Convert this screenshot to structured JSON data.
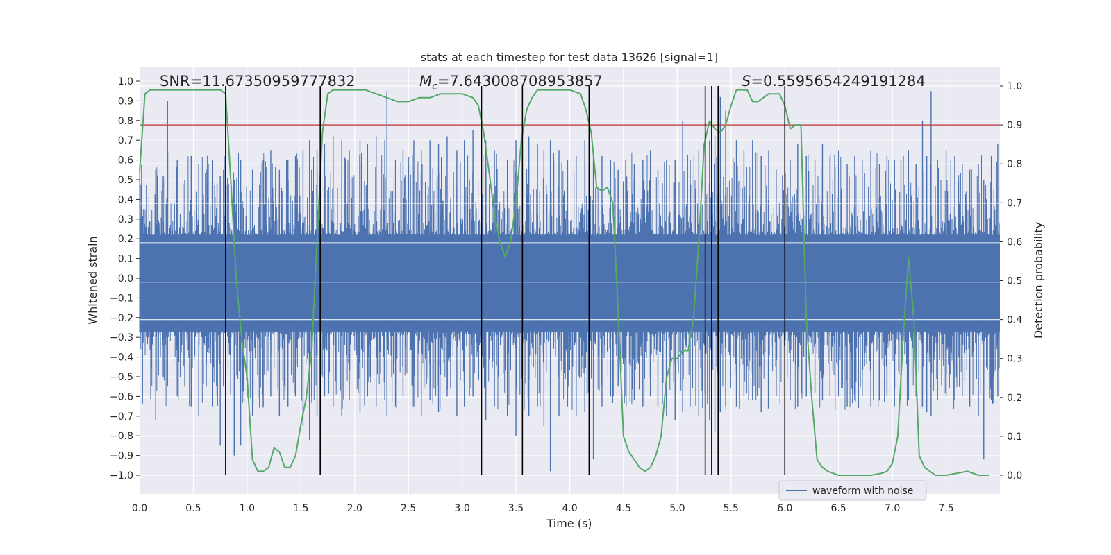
{
  "chart_data": {
    "type": "line",
    "title": "stats at each timestep for test data 13626 [signal=1]",
    "xlabel": "Time (s)",
    "ylabel_left": "Whitened strain",
    "ylabel_right": "Detection probability",
    "xlim": [
      0,
      8
    ],
    "ylim_left": [
      -1.0,
      1.0
    ],
    "ylim_right": [
      0.0,
      1.0
    ],
    "x_ticks": [
      "0.0",
      "0.5",
      "1.0",
      "1.5",
      "2.0",
      "2.5",
      "3.0",
      "3.5",
      "4.0",
      "4.5",
      "5.0",
      "5.5",
      "6.0",
      "6.5",
      "7.0",
      "7.5"
    ],
    "y_ticks_left": [
      "1.0",
      "0.9",
      "0.8",
      "0.7",
      "0.6",
      "0.5",
      "0.4",
      "0.3",
      "0.2",
      "0.1",
      "0.0",
      "-0.1",
      "-0.2",
      "-0.3",
      "-0.4",
      "-0.5",
      "-0.6",
      "-0.7",
      "-0.8",
      "-0.9",
      "-1.0"
    ],
    "y_ticks_right": [
      "1.0",
      "0.9",
      "0.8",
      "0.7",
      "0.6",
      "0.5",
      "0.4",
      "0.3",
      "0.2",
      "0.1",
      "0.0"
    ],
    "threshold": 0.9,
    "vertical_lines": [
      0.8,
      1.68,
      3.18,
      3.56,
      4.18,
      5.26,
      5.32,
      5.38,
      6.0
    ],
    "annotations": {
      "snr": "SNR=11.67350959777832",
      "mc_symbol": "M",
      "mc_sub": "c",
      "mc_value": "=7.643008708953857",
      "s_symbol": "S",
      "s_value": "=0.5595654249191284"
    },
    "legend": {
      "label": "waveform with noise",
      "location": "lower-right"
    },
    "probability_series": {
      "name": "Detection probability",
      "x": [
        0.0,
        0.05,
        0.1,
        0.2,
        0.3,
        0.4,
        0.5,
        0.6,
        0.7,
        0.75,
        0.8,
        0.85,
        0.9,
        0.95,
        1.0,
        1.05,
        1.1,
        1.15,
        1.2,
        1.25,
        1.3,
        1.35,
        1.4,
        1.45,
        1.5,
        1.55,
        1.6,
        1.65,
        1.7,
        1.75,
        1.8,
        1.9,
        2.0,
        2.1,
        2.2,
        2.3,
        2.4,
        2.5,
        2.6,
        2.7,
        2.8,
        2.9,
        3.0,
        3.1,
        3.15,
        3.2,
        3.25,
        3.3,
        3.35,
        3.4,
        3.45,
        3.5,
        3.55,
        3.6,
        3.65,
        3.7,
        3.75,
        3.8,
        3.9,
        4.0,
        4.1,
        4.15,
        4.2,
        4.25,
        4.3,
        4.35,
        4.4,
        4.45,
        4.5,
        4.55,
        4.6,
        4.65,
        4.7,
        4.75,
        4.8,
        4.85,
        4.9,
        4.95,
        5.0,
        5.05,
        5.1,
        5.15,
        5.2,
        5.25,
        5.3,
        5.35,
        5.4,
        5.45,
        5.5,
        5.55,
        5.6,
        5.65,
        5.7,
        5.75,
        5.8,
        5.85,
        5.9,
        5.95,
        6.0,
        6.05,
        6.1,
        6.15,
        6.2,
        6.25,
        6.3,
        6.35,
        6.4,
        6.45,
        6.5,
        6.6,
        6.7,
        6.8,
        6.9,
        6.95,
        7.0,
        7.05,
        7.1,
        7.15,
        7.2,
        7.25,
        7.3,
        7.35,
        7.4,
        7.45,
        7.5,
        7.6,
        7.7,
        7.75,
        7.8,
        7.9
      ],
      "y": [
        0.78,
        0.98,
        0.99,
        0.99,
        0.99,
        0.99,
        0.99,
        0.99,
        0.99,
        0.99,
        0.98,
        0.75,
        0.5,
        0.35,
        0.25,
        0.04,
        0.01,
        0.01,
        0.02,
        0.07,
        0.06,
        0.02,
        0.02,
        0.05,
        0.13,
        0.2,
        0.32,
        0.6,
        0.88,
        0.98,
        0.99,
        0.99,
        0.99,
        0.99,
        0.98,
        0.97,
        0.96,
        0.96,
        0.97,
        0.97,
        0.98,
        0.98,
        0.98,
        0.97,
        0.95,
        0.88,
        0.78,
        0.67,
        0.6,
        0.56,
        0.6,
        0.7,
        0.86,
        0.94,
        0.97,
        0.99,
        0.99,
        0.99,
        0.99,
        0.99,
        0.98,
        0.94,
        0.88,
        0.74,
        0.73,
        0.74,
        0.7,
        0.42,
        0.1,
        0.06,
        0.04,
        0.02,
        0.01,
        0.02,
        0.05,
        0.1,
        0.25,
        0.3,
        0.3,
        0.32,
        0.32,
        0.4,
        0.6,
        0.85,
        0.91,
        0.89,
        0.88,
        0.9,
        0.95,
        0.99,
        0.99,
        0.99,
        0.96,
        0.96,
        0.97,
        0.98,
        0.98,
        0.98,
        0.95,
        0.89,
        0.9,
        0.9,
        0.4,
        0.2,
        0.04,
        0.02,
        0.01,
        0.005,
        0.0,
        0.0,
        0.0,
        0.0,
        0.005,
        0.01,
        0.03,
        0.1,
        0.35,
        0.56,
        0.4,
        0.05,
        0.02,
        0.01,
        0.0,
        0.0,
        0.0,
        0.005,
        0.01,
        0.005,
        0.0,
        0.0
      ]
    },
    "strain_series": {
      "name": "waveform with noise",
      "x": [
        0.15,
        0.22,
        0.26,
        0.35,
        0.42,
        0.48,
        0.55,
        0.62,
        0.68,
        0.72,
        0.75,
        0.78,
        0.88,
        0.94,
        1.05,
        1.15,
        1.22,
        1.3,
        1.38,
        1.45,
        1.52,
        1.58,
        1.6,
        1.65,
        1.72,
        1.8,
        1.88,
        1.95,
        2.05,
        2.12,
        2.2,
        2.28,
        2.3,
        2.38,
        2.45,
        2.55,
        2.62,
        2.7,
        2.78,
        2.86,
        2.95,
        3.02,
        3.1,
        3.22,
        3.3,
        3.42,
        3.5,
        3.56,
        3.62,
        3.7,
        3.76,
        3.82,
        3.9,
        3.98,
        4.06,
        4.14,
        4.22,
        4.3,
        4.38,
        4.45,
        4.52,
        4.6,
        4.68,
        4.75,
        4.82,
        4.9,
        4.98,
        5.05,
        5.12,
        5.2,
        5.3,
        5.35,
        5.4,
        5.45,
        5.55,
        5.62,
        5.7,
        5.78,
        5.85,
        5.92,
        6.05,
        6.12,
        6.2,
        6.28,
        6.35,
        6.42,
        6.5,
        6.58,
        6.65,
        6.72,
        6.8,
        6.88,
        6.95,
        7.02,
        7.08,
        7.15,
        7.22,
        7.28,
        7.32,
        7.36,
        7.42,
        7.5,
        7.58,
        7.65,
        7.72,
        7.8,
        7.85,
        7.92,
        7.98
      ],
      "high": [
        0.55,
        0.52,
        0.9,
        0.6,
        0.5,
        0.62,
        0.58,
        0.55,
        0.6,
        0.48,
        0.52,
        0.55,
        0.5,
        0.6,
        0.55,
        0.6,
        0.65,
        0.55,
        0.6,
        0.62,
        0.65,
        0.7,
        0.55,
        0.65,
        0.68,
        0.72,
        0.7,
        0.65,
        0.7,
        0.68,
        0.72,
        0.7,
        0.95,
        0.6,
        0.65,
        0.7,
        0.65,
        0.7,
        0.68,
        0.72,
        0.65,
        0.7,
        0.75,
        0.7,
        0.65,
        0.6,
        0.7,
        0.75,
        0.72,
        0.68,
        0.65,
        0.7,
        0.65,
        0.6,
        0.62,
        0.7,
        0.65,
        0.62,
        0.6,
        0.55,
        0.6,
        0.58,
        0.6,
        0.65,
        0.55,
        0.6,
        0.6,
        0.8,
        0.6,
        0.65,
        0.7,
        0.72,
        0.92,
        0.85,
        0.7,
        0.65,
        0.7,
        0.62,
        0.65,
        0.55,
        0.6,
        0.68,
        0.62,
        0.6,
        0.68,
        0.62,
        0.65,
        0.58,
        0.62,
        0.6,
        0.65,
        0.58,
        0.62,
        0.6,
        0.6,
        0.65,
        0.58,
        0.8,
        0.62,
        0.95,
        0.6,
        0.65,
        0.62,
        0.58,
        0.55,
        0.58,
        0.5,
        0.62,
        0.68
      ],
      "low": [
        -0.72,
        -0.5,
        -0.55,
        -0.6,
        -0.55,
        -0.65,
        -0.7,
        -0.55,
        -0.65,
        -0.6,
        -0.85,
        -0.55,
        -0.9,
        -0.85,
        -0.7,
        -0.65,
        -0.6,
        -0.7,
        -0.65,
        -0.6,
        -0.75,
        -0.82,
        -0.6,
        -0.7,
        -0.6,
        -0.65,
        -0.7,
        -0.62,
        -0.68,
        -0.6,
        -0.65,
        -0.62,
        -0.7,
        -0.65,
        -0.6,
        -0.65,
        -0.7,
        -0.62,
        -0.68,
        -0.6,
        -0.7,
        -0.65,
        -0.6,
        -0.72,
        -0.65,
        -0.7,
        -0.8,
        -0.78,
        -0.7,
        -0.65,
        -0.75,
        -0.98,
        -0.7,
        -0.65,
        -0.7,
        -0.68,
        -0.92,
        -0.65,
        -0.6,
        -0.55,
        -0.6,
        -0.62,
        -0.65,
        -0.6,
        -0.65,
        -0.7,
        -0.72,
        -0.68,
        -0.65,
        -0.7,
        -0.72,
        -0.78,
        -0.68,
        -0.65,
        -0.65,
        -0.6,
        -0.62,
        -0.68,
        -0.65,
        -0.6,
        -0.62,
        -0.65,
        -0.6,
        -0.58,
        -0.62,
        -0.6,
        -0.6,
        -0.65,
        -0.62,
        -0.6,
        -0.65,
        -0.62,
        -0.6,
        -0.65,
        -0.6,
        -0.62,
        -0.6,
        -0.65,
        -0.68,
        -0.7,
        -0.62,
        -0.6,
        -0.62,
        -0.6,
        -0.65,
        -0.7,
        -0.92,
        -0.62,
        -0.6
      ]
    }
  }
}
